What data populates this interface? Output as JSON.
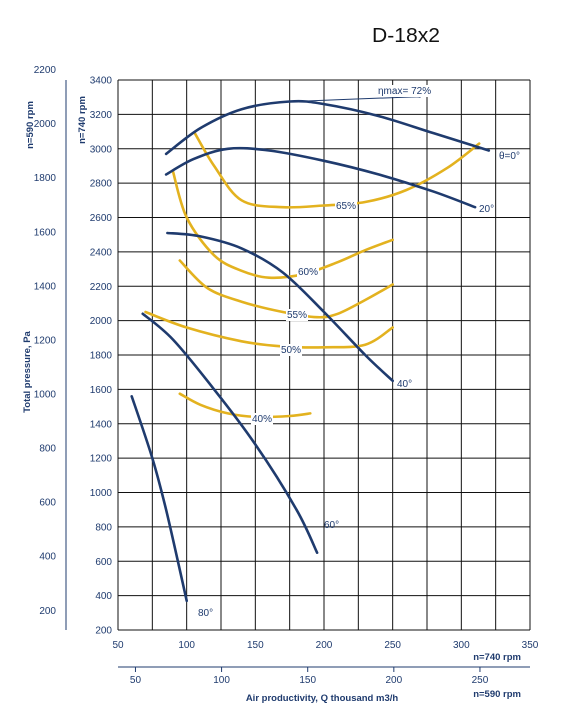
{
  "title": "D-18x2",
  "chart_data": {
    "type": "line",
    "title": "D-18x2",
    "ylabel": "Total pressure, Pa",
    "xlabel": "Air productivity, Q thousand m3/h",
    "y_axis_740": {
      "label": "n=740 rpm",
      "ticks": [
        200,
        400,
        600,
        800,
        1000,
        1200,
        1400,
        1600,
        1800,
        2000,
        2200,
        2400,
        2600,
        2800,
        3000,
        3200,
        3400
      ],
      "range": [
        200,
        3400
      ]
    },
    "y_axis_590": {
      "label": "n=590 rpm",
      "ticks": [
        200,
        400,
        600,
        800,
        1000,
        1200,
        1400,
        1600,
        1800,
        2000,
        2200
      ]
    },
    "x_axis_740": {
      "label": "n=740 rpm",
      "ticks": [
        50,
        100,
        150,
        200,
        250,
        300,
        350
      ],
      "range": [
        50,
        350
      ]
    },
    "x_axis_590": {
      "label": "n=590 rpm",
      "ticks": [
        50,
        100,
        150,
        200,
        250
      ]
    },
    "grid": true,
    "colors": {
      "blade": "#1f3b6e",
      "efficiency": "#e3b21f",
      "text": "#1f3b6e"
    },
    "blade_curves": [
      {
        "label": "θ=0°",
        "points": [
          [
            85,
            2970
          ],
          [
            110,
            3120
          ],
          [
            140,
            3230
          ],
          [
            175,
            3275
          ],
          [
            200,
            3260
          ],
          [
            240,
            3190
          ],
          [
            280,
            3090
          ],
          [
            320,
            2990
          ]
        ]
      },
      {
        "label": "20°",
        "points": [
          [
            85,
            2850
          ],
          [
            105,
            2940
          ],
          [
            130,
            3000
          ],
          [
            160,
            2990
          ],
          [
            200,
            2930
          ],
          [
            240,
            2850
          ],
          [
            280,
            2750
          ],
          [
            310,
            2660
          ]
        ]
      },
      {
        "label": "40°",
        "points": [
          [
            86,
            2510
          ],
          [
            110,
            2490
          ],
          [
            140,
            2420
          ],
          [
            170,
            2280
          ],
          [
            200,
            2050
          ],
          [
            230,
            1800
          ],
          [
            250,
            1650
          ]
        ]
      },
      {
        "label": "60°",
        "points": [
          [
            68,
            2040
          ],
          [
            90,
            1890
          ],
          [
            120,
            1600
          ],
          [
            150,
            1280
          ],
          [
            180,
            900
          ],
          [
            195,
            650
          ]
        ]
      },
      {
        "label": "80°",
        "points": [
          [
            60,
            1560
          ],
          [
            75,
            1200
          ],
          [
            85,
            900
          ],
          [
            95,
            550
          ],
          [
            100,
            370
          ]
        ]
      }
    ],
    "efficiency_curves": [
      {
        "label": "ηmax= 72%",
        "points": [
          [
            178,
            3275
          ],
          [
            258,
            3300
          ],
          [
            270,
            3300
          ]
        ]
      },
      {
        "label": "65%",
        "points": [
          [
            106,
            3090
          ],
          [
            120,
            2900
          ],
          [
            140,
            2700
          ],
          [
            170,
            2660
          ],
          [
            200,
            2670
          ],
          [
            230,
            2690
          ],
          [
            260,
            2760
          ],
          [
            290,
            2890
          ],
          [
            313,
            3030
          ]
        ]
      },
      {
        "label": "60%",
        "points": [
          [
            90,
            2870
          ],
          [
            100,
            2600
          ],
          [
            120,
            2380
          ],
          [
            140,
            2290
          ],
          [
            160,
            2250
          ],
          [
            185,
            2270
          ],
          [
            210,
            2340
          ],
          [
            230,
            2410
          ],
          [
            250,
            2470
          ]
        ]
      },
      {
        "label": "55%",
        "points": [
          [
            95,
            2350
          ],
          [
            115,
            2190
          ],
          [
            140,
            2110
          ],
          [
            170,
            2050
          ],
          [
            195,
            2020
          ],
          [
            210,
            2040
          ],
          [
            230,
            2120
          ],
          [
            250,
            2210
          ]
        ]
      },
      {
        "label": "50%",
        "points": [
          [
            70,
            2050
          ],
          [
            100,
            1960
          ],
          [
            140,
            1880
          ],
          [
            170,
            1850
          ],
          [
            200,
            1845
          ],
          [
            230,
            1860
          ],
          [
            250,
            1960
          ]
        ]
      },
      {
        "label": "40%",
        "points": [
          [
            95,
            1575
          ],
          [
            110,
            1510
          ],
          [
            130,
            1460
          ],
          [
            150,
            1440
          ],
          [
            175,
            1445
          ],
          [
            190,
            1460
          ]
        ]
      }
    ]
  }
}
